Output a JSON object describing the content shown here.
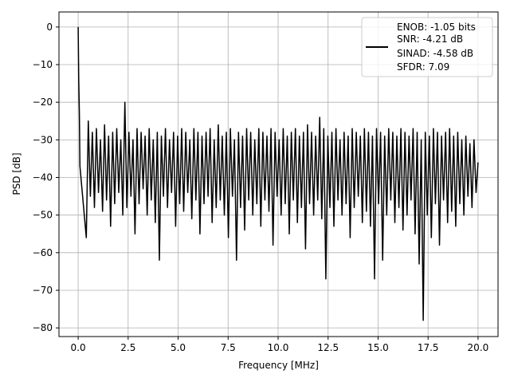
{
  "chart_data": {
    "type": "line",
    "title": "",
    "xlabel": "Frequency [MHz]",
    "ylabel": "PSD [dB]",
    "xlim": [
      -0.96,
      21.0
    ],
    "ylim": [
      -82.3,
      4.0
    ],
    "xticks": [
      0,
      2.5,
      5,
      7.5,
      10,
      12.5,
      15,
      17.5,
      20
    ],
    "xtick_labels": [
      "0.0",
      "2.5",
      "5.0",
      "7.5",
      "10.0",
      "12.5",
      "15.0",
      "17.5",
      "20.0"
    ],
    "yticks": [
      0,
      -10,
      -20,
      -30,
      -40,
      -50,
      -60,
      -70,
      -80
    ],
    "ytick_labels": [
      "0",
      "−10",
      "−20",
      "−30",
      "−40",
      "−50",
      "−60",
      "−70",
      "−80"
    ],
    "grid": true,
    "legend_placement": "top-right",
    "series": [
      {
        "name": "ENOB: -1.05 bits\nSNR: -4.21 dB\nSINAD: -4.58 dB\nSFDR: 7.09",
        "legend_lines": [
          "ENOB: -1.05 bits",
          "SNR: -4.21 dB",
          "SINAD: -4.58 dB",
          "SFDR: 7.09"
        ],
        "color": "#000000",
        "x_range": [
          0,
          20
        ],
        "y": [
          0,
          -14,
          -23,
          -37,
          -56,
          -25,
          -45,
          -28,
          -48,
          -27,
          -44,
          -30,
          -49,
          -26,
          -46,
          -29,
          -53,
          -28,
          -47,
          -27,
          -44,
          -30,
          -50,
          -20,
          -48,
          -28,
          -45,
          -30,
          -55,
          -27,
          -47,
          -28,
          -43,
          -29,
          -50,
          -27,
          -46,
          -30,
          -52,
          -28,
          -62,
          -29,
          -45,
          -27,
          -48,
          -30,
          -44,
          -28,
          -53,
          -29,
          -47,
          -27,
          -49,
          -28,
          -44,
          -30,
          -51,
          -27,
          -46,
          -28,
          -55,
          -29,
          -47,
          -28,
          -45,
          -27,
          -52,
          -30,
          -48,
          -26,
          -46,
          -29,
          -50,
          -28,
          -56,
          -27,
          -45,
          -30,
          -62,
          -28,
          -48,
          -29,
          -54,
          -27,
          -46,
          -28,
          -50,
          -30,
          -47,
          -27,
          -53,
          -28,
          -46,
          -29,
          -49,
          -27,
          -58,
          -28,
          -45,
          -30,
          -50,
          -27,
          -47,
          -29,
          -55,
          -28,
          -46,
          -27,
          -52,
          -29,
          -48,
          -28,
          -59,
          -26,
          -47,
          -28,
          -50,
          -29,
          -46,
          -24,
          -51,
          -27,
          -67,
          -29,
          -48,
          -28,
          -53,
          -27,
          -46,
          -30,
          -50,
          -28,
          -47,
          -29,
          -56,
          -27,
          -48,
          -28,
          -45,
          -29,
          -52,
          -27,
          -49,
          -28,
          -53,
          -29,
          -67,
          -27,
          -47,
          -28,
          -62,
          -29,
          -50,
          -27,
          -46,
          -28,
          -52,
          -29,
          -48,
          -27,
          -54,
          -28,
          -50,
          -29,
          -46,
          -27,
          -55,
          -28,
          -63,
          -30,
          -78,
          -28,
          -50,
          -29,
          -56,
          -27,
          -47,
          -28,
          -58,
          -29,
          -46,
          -28,
          -52,
          -27,
          -49,
          -29,
          -53,
          -28,
          -47,
          -30,
          -50,
          -29,
          -45,
          -31,
          -48,
          -30,
          -44,
          -36
        ]
      }
    ]
  }
}
